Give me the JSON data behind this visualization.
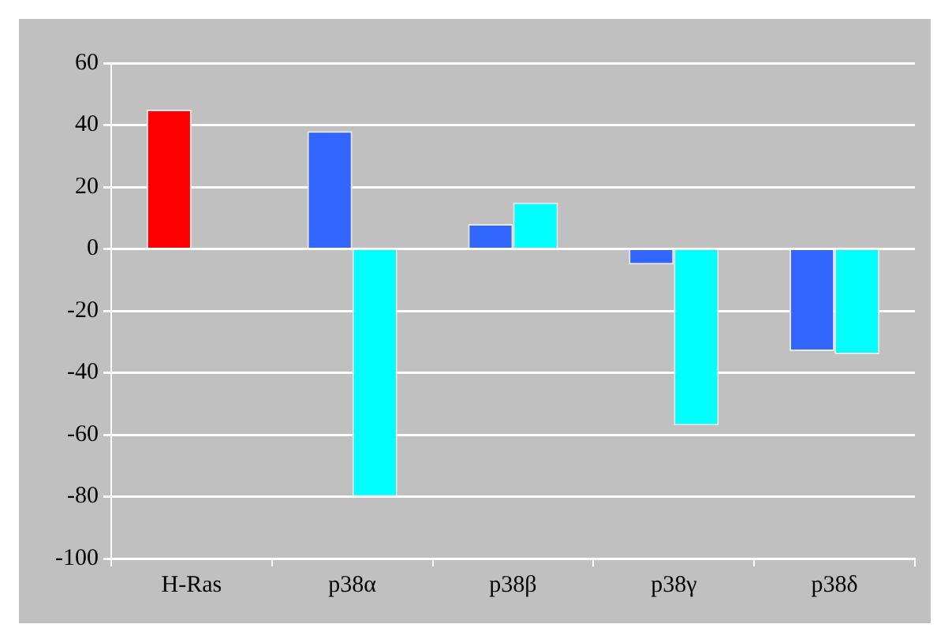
{
  "chart_data": {
    "type": "bar",
    "categories": [
      "H-Ras",
      "p38α",
      "p38β",
      "p38γ",
      "p38δ"
    ],
    "series": [
      {
        "colors": [
          "#ff0000",
          "#3366ff",
          "#3366ff",
          "#3366ff",
          "#3366ff"
        ],
        "values": [
          45,
          38,
          8,
          -5,
          -33
        ]
      },
      {
        "color": "#00ffff",
        "values": [
          null,
          -80,
          15,
          -57,
          -34
        ]
      }
    ],
    "ylim": [
      -100,
      60
    ],
    "yticks": [
      -100,
      -80,
      -60,
      -40,
      -20,
      0,
      20,
      40,
      60
    ],
    "grid": "y"
  }
}
